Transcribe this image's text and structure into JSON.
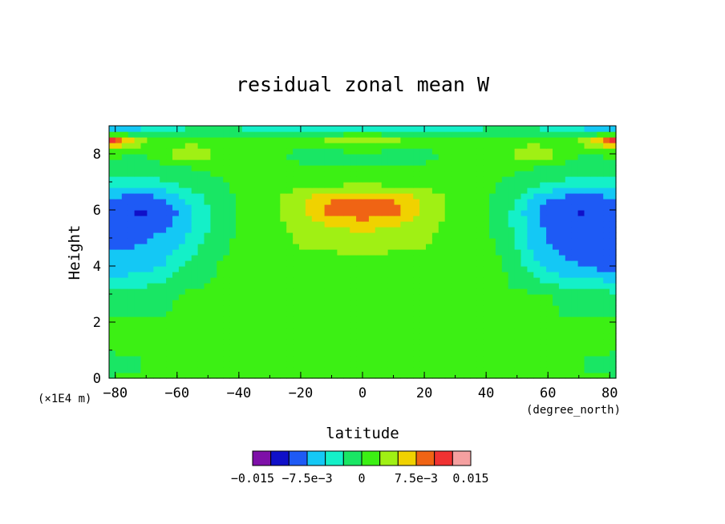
{
  "chart_data": {
    "type": "heatmap",
    "title": "residual zonal mean W",
    "xlabel": "latitude",
    "ylabel": "Height",
    "x_units": "(degree_north)",
    "y_units": "(×1E4 m)",
    "xlim": [
      -82,
      82
    ],
    "ylim": [
      0,
      9
    ],
    "x_ticks": [
      -80,
      -60,
      -40,
      -20,
      0,
      20,
      40,
      60,
      80
    ],
    "y_ticks": [
      0,
      2,
      4,
      6,
      8
    ],
    "x_tick_labels": [
      "−80",
      "−60",
      "−40",
      "−20",
      "0",
      "20",
      "40",
      "60",
      "80"
    ],
    "y_tick_labels": [
      "0",
      "2",
      "4",
      "6",
      "8"
    ],
    "colorbar": {
      "levels": [
        -0.015,
        -0.0125,
        -0.01,
        -0.0075,
        -0.005,
        -0.0025,
        0,
        0.0025,
        0.005,
        0.0075,
        0.01,
        0.0125,
        0.015
      ],
      "colors": [
        "#7e10a8",
        "#1010c8",
        "#1e5af5",
        "#14c8f5",
        "#14f0c8",
        "#19e664",
        "#3cf014",
        "#a0f014",
        "#f0d200",
        "#f06414",
        "#f03232",
        "#f5a0a0"
      ],
      "tick_labels": [
        "−0.015",
        "−7.5e−3",
        "0",
        "7.5e−3",
        "0.015"
      ],
      "tick_values": [
        -0.015,
        -0.0075,
        0,
        0.0075,
        0.015
      ]
    },
    "lat": [
      -82,
      -75,
      -70,
      -65,
      -60,
      -55,
      -50,
      -45,
      -40,
      -35,
      -30,
      -20,
      -10,
      0,
      10,
      20,
      30,
      35,
      40,
      45,
      50,
      55,
      60,
      65,
      70,
      75,
      82
    ],
    "height": [
      0,
      0.5,
      1,
      2,
      3,
      4,
      5,
      5.5,
      6,
      6.5,
      7,
      7.5,
      8,
      8.5,
      9
    ],
    "w": [
      [
        0.0003,
        0.0003,
        0.0003,
        0.0003,
        0.0003,
        0.0003,
        0.0003,
        0.0003,
        0.0003,
        0.0014,
        0.0014,
        0.0014,
        0.0014,
        0.0014,
        0.0014,
        0.0014,
        0.0014,
        0.0014,
        0.0003,
        0.0003,
        0.0003,
        0.0003,
        0.0003,
        0.0003,
        0.0003,
        0.0003,
        0.0003
      ],
      [
        -0.0015,
        -0.0008,
        0.0003,
        0.0003,
        0.0003,
        0.0003,
        0.0003,
        0.0003,
        0.0003,
        0.0014,
        0.0014,
        0.0014,
        0.0014,
        0.0014,
        0.0014,
        0.0014,
        0.0014,
        0.0014,
        0.0003,
        0.0003,
        0.0003,
        0.0003,
        0.0003,
        0.0003,
        0.0003,
        -0.0008,
        -0.0015
      ],
      [
        0.0003,
        0.0003,
        0.0003,
        0.0003,
        0.0003,
        0.0003,
        0.0003,
        0.0003,
        0.0003,
        0.0014,
        0.0014,
        0.0014,
        0.0014,
        0.0014,
        0.0014,
        0.0014,
        0.0014,
        0.0014,
        0.0003,
        0.0003,
        0.0003,
        0.0003,
        0.0003,
        0.0003,
        0.0003,
        0.0003,
        0.0003
      ],
      [
        0.0003,
        0.0003,
        0.0003,
        0.0003,
        0.0003,
        0.0003,
        0.0003,
        0.0003,
        0.0003,
        0.0014,
        0.0014,
        0.0014,
        0.0014,
        0.0014,
        0.0014,
        0.0014,
        0.0014,
        0.0014,
        0.0003,
        0.0003,
        0.0003,
        0.0003,
        0.0003,
        0.0003,
        0.0003,
        0.0003,
        0.0003
      ],
      [
        -0.002,
        -0.0015,
        -0.0012,
        -0.0008,
        0.0,
        0.0003,
        0.0003,
        0.0003,
        0.0003,
        0.0014,
        0.0014,
        0.0014,
        0.0014,
        0.0014,
        0.0014,
        0.0014,
        0.0014,
        0.0014,
        0.0003,
        0.0003,
        0.0003,
        0.0003,
        0.0003,
        -0.0008,
        -0.0012,
        -0.0015,
        -0.002
      ],
      [
        -0.007,
        -0.0065,
        -0.006,
        -0.005,
        -0.003,
        -0.0015,
        -0.0005,
        0.0003,
        0.0003,
        0.0014,
        0.0014,
        0.0014,
        0.0014,
        0.0014,
        0.0014,
        0.0014,
        0.0014,
        0.0014,
        0.0003,
        0.0003,
        -0.0015,
        -0.004,
        -0.006,
        -0.007,
        -0.0075,
        -0.008,
        -0.009
      ],
      [
        -0.008,
        -0.008,
        -0.0078,
        -0.007,
        -0.006,
        -0.004,
        -0.002,
        -0.0005,
        0.0003,
        0.0014,
        0.0014,
        0.003,
        0.0035,
        0.004,
        0.0035,
        0.003,
        0.0014,
        0.0014,
        0.0003,
        -0.0005,
        -0.003,
        -0.006,
        -0.0078,
        -0.0082,
        -0.0085,
        -0.0085,
        -0.0085
      ],
      [
        -0.0085,
        -0.009,
        -0.0088,
        -0.008,
        -0.007,
        -0.005,
        -0.003,
        -0.001,
        0.0003,
        0.0014,
        0.0014,
        0.0035,
        0.0055,
        0.006,
        0.0055,
        0.0035,
        0.0014,
        0.0014,
        0.0003,
        -0.001,
        -0.0035,
        -0.0065,
        -0.0082,
        -0.0088,
        -0.009,
        -0.009,
        -0.0085
      ],
      [
        -0.009,
        -0.0102,
        -0.0104,
        -0.009,
        -0.0075,
        -0.005,
        -0.003,
        -0.001,
        0.0003,
        0.0014,
        0.0014,
        0.005,
        0.0088,
        0.0105,
        0.0088,
        0.005,
        0.0014,
        0.0014,
        0.0003,
        -0.001,
        -0.0035,
        -0.007,
        -0.009,
        -0.0095,
        -0.0105,
        -0.0095,
        -0.009
      ],
      [
        -0.007,
        -0.0078,
        -0.0078,
        -0.007,
        -0.0055,
        -0.0035,
        -0.002,
        -0.0005,
        0.0003,
        0.0014,
        0.0014,
        0.004,
        0.0065,
        0.0075,
        0.0065,
        0.004,
        0.0014,
        0.0014,
        0.0003,
        -0.0005,
        -0.002,
        -0.0045,
        -0.0065,
        -0.0075,
        -0.0078,
        -0.0078,
        -0.007
      ],
      [
        -0.003,
        -0.0035,
        -0.0035,
        -0.003,
        -0.002,
        -0.0012,
        -0.0005,
        0.0,
        0.0003,
        0.0003,
        0.0005,
        0.001,
        0.0014,
        0.0014,
        0.0014,
        0.001,
        0.0005,
        0.0003,
        0.0003,
        0.0,
        -0.0005,
        -0.0012,
        -0.002,
        -0.003,
        -0.0035,
        -0.0035,
        -0.003
      ],
      [
        -0.0015,
        -0.0015,
        -0.0012,
        -0.0008,
        -0.0003,
        0.0,
        0.0003,
        0.0003,
        0.0003,
        0.0003,
        0.0003,
        0.0003,
        0.0003,
        0.0003,
        0.0003,
        0.0003,
        0.0003,
        0.0003,
        0.0003,
        0.0003,
        0.0003,
        0.0,
        -0.0003,
        -0.0008,
        -0.0012,
        -0.0015,
        -0.0015
      ],
      [
        0.0005,
        0.0003,
        0.0003,
        0.0014,
        0.0035,
        0.0045,
        0.0035,
        0.0014,
        0.0003,
        0.0003,
        0.0003,
        -0.0005,
        -0.0008,
        -0.0008,
        -0.0008,
        -0.0005,
        0.0003,
        0.0003,
        0.0003,
        0.0014,
        0.0035,
        0.0045,
        0.0035,
        0.0014,
        0.0003,
        0.0003,
        0.0005
      ],
      [
        0.011,
        0.006,
        0.002,
        0.0014,
        0.0014,
        0.0014,
        0.0014,
        0.0014,
        0.0003,
        0.0003,
        0.0003,
        0.0014,
        0.003,
        0.0035,
        0.003,
        0.0014,
        0.0003,
        0.0003,
        0.0003,
        0.0014,
        0.0014,
        0.0014,
        0.0014,
        0.0014,
        0.002,
        0.006,
        0.011
      ],
      [
        -0.012,
        -0.01,
        -0.006,
        -0.004,
        -0.004,
        -0.003,
        -0.003,
        -0.003,
        -0.003,
        -0.004,
        -0.004,
        -0.004,
        -0.005,
        -0.004,
        -0.005,
        -0.004,
        -0.004,
        -0.004,
        -0.003,
        -0.003,
        -0.003,
        -0.003,
        -0.004,
        -0.004,
        -0.006,
        -0.01,
        -0.012
      ]
    ]
  }
}
